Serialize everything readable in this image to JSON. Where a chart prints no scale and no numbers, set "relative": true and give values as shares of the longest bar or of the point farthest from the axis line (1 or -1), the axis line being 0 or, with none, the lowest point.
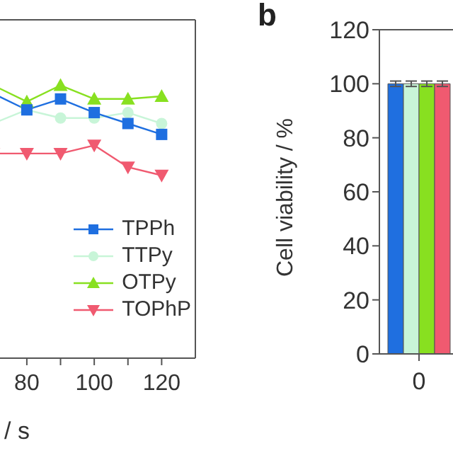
{
  "chart_data": [
    {
      "type": "line",
      "xlabel": "/ s",
      "relative": true,
      "x": [
        70,
        80,
        90,
        100,
        110,
        120
      ],
      "xlim": [
        67,
        130
      ],
      "xticks": [
        {
          "value": 70,
          "label": null
        },
        80,
        {
          "value": 90,
          "label": null
        },
        100,
        {
          "value": 110,
          "label": null
        },
        120
      ],
      "legend": "bottom right",
      "line_style": "solid",
      "series": [
        {
          "name": "TPPh",
          "color": "#1f6fe0",
          "marker": "square",
          "values": [
            0.97,
            0.91,
            0.95,
            0.9,
            0.86,
            0.82
          ]
        },
        {
          "name": "TTPy",
          "color": "#c8f5d8",
          "marker": "circle",
          "values": [
            0.86,
            0.91,
            0.88,
            0.88,
            0.9,
            0.86
          ]
        },
        {
          "name": "OTPy",
          "color": "#88e020",
          "marker": "triangle",
          "values": [
            1,
            0.94,
            1,
            0.95,
            0.95,
            0.96
          ]
        },
        {
          "name": "TOPhP",
          "color": "#f05a70",
          "marker": "triangle-down",
          "values": [
            0.75,
            0.75,
            0.75,
            0.78,
            0.7,
            0.67
          ]
        }
      ]
    },
    {
      "type": "bar",
      "title": "b",
      "ylabel": "Cell viability / %",
      "categories": [
        "0"
      ],
      "ylim": [
        0,
        120
      ],
      "yticks": [
        0,
        20,
        40,
        60,
        80,
        100,
        120
      ],
      "series": [
        {
          "color": "#1f6fe0",
          "values": [
            100
          ],
          "errors": [
            1
          ]
        },
        {
          "color": "#c8f5d8",
          "values": [
            100
          ],
          "errors": [
            1
          ]
        },
        {
          "color": "#88e020",
          "values": [
            100
          ],
          "errors": [
            1
          ]
        },
        {
          "color": "#f05a70",
          "values": [
            100
          ],
          "errors": [
            1
          ]
        }
      ]
    }
  ]
}
